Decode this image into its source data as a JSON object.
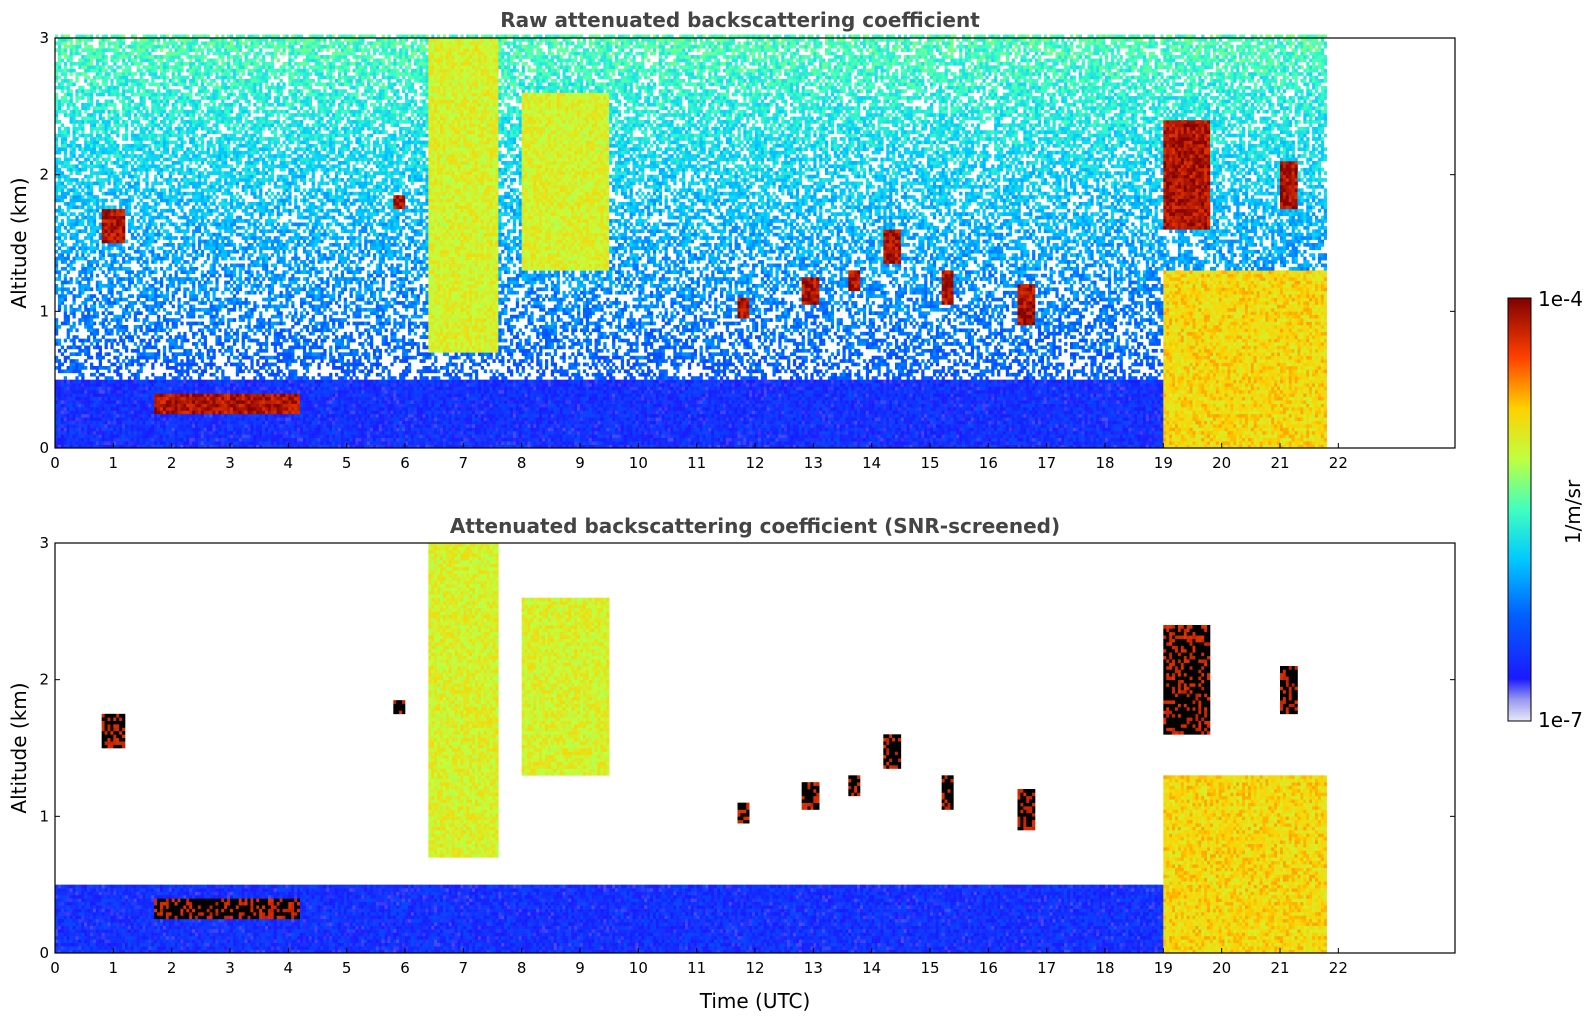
{
  "chart_data": [
    {
      "type": "heatmap",
      "title": "Raw attenuated backscattering coefficient",
      "xlabel": "",
      "ylabel": "Altitude (km)",
      "xlim": [
        0,
        24
      ],
      "ylim": [
        0,
        3
      ],
      "x_ticks": [
        "0",
        "1",
        "2",
        "3",
        "4",
        "5",
        "6",
        "7",
        "8",
        "9",
        "10",
        "11",
        "12",
        "13",
        "14",
        "15",
        "16",
        "17",
        "18",
        "19",
        "20",
        "21",
        "22"
      ],
      "y_ticks": [
        "0",
        "1",
        "2",
        "3"
      ],
      "data_extent_hours": [
        0,
        21.8
      ],
      "features": [
        {
          "kind": "boundary-layer",
          "x": [
            0,
            19
          ],
          "y": [
            0,
            0.5
          ],
          "level": "low"
        },
        {
          "kind": "aerosol-layer",
          "x": [
            1.7,
            4.2
          ],
          "y": [
            0.25,
            0.4
          ],
          "level": "max"
        },
        {
          "kind": "fall-streak",
          "x": [
            6.4,
            7.6
          ],
          "y": [
            0.7,
            3.0
          ],
          "level": "mid"
        },
        {
          "kind": "fall-streak",
          "x": [
            8.0,
            9.5
          ],
          "y": [
            1.3,
            2.6
          ],
          "level": "mid"
        },
        {
          "kind": "cloud",
          "x": [
            0.8,
            1.2
          ],
          "y": [
            1.5,
            1.75
          ],
          "level": "max"
        },
        {
          "kind": "cloud",
          "x": [
            5.8,
            6.0
          ],
          "y": [
            1.75,
            1.85
          ],
          "level": "max"
        },
        {
          "kind": "cloud",
          "x": [
            11.7,
            11.9
          ],
          "y": [
            0.95,
            1.1
          ],
          "level": "max"
        },
        {
          "kind": "cloud",
          "x": [
            12.8,
            13.1
          ],
          "y": [
            1.05,
            1.25
          ],
          "level": "max"
        },
        {
          "kind": "cloud",
          "x": [
            13.6,
            13.8
          ],
          "y": [
            1.15,
            1.3
          ],
          "level": "max"
        },
        {
          "kind": "cloud",
          "x": [
            14.2,
            14.5
          ],
          "y": [
            1.35,
            1.6
          ],
          "level": "max"
        },
        {
          "kind": "cloud",
          "x": [
            15.2,
            15.4
          ],
          "y": [
            1.05,
            1.3
          ],
          "level": "max"
        },
        {
          "kind": "cloud",
          "x": [
            16.5,
            16.8
          ],
          "y": [
            0.9,
            1.2
          ],
          "level": "max"
        },
        {
          "kind": "cloud",
          "x": [
            19.0,
            19.8
          ],
          "y": [
            1.6,
            2.4
          ],
          "level": "max"
        },
        {
          "kind": "cloud",
          "x": [
            21.0,
            21.3
          ],
          "y": [
            1.75,
            2.1
          ],
          "level": "max"
        },
        {
          "kind": "low-cloud-precip",
          "x": [
            19.0,
            21.8
          ],
          "y": [
            0,
            1.3
          ],
          "level": "high"
        }
      ]
    },
    {
      "type": "heatmap",
      "title": "Attenuated backscattering coefficient (SNR-screened)",
      "xlabel": "Time (UTC)",
      "ylabel": "Altitude (km)",
      "xlim": [
        0,
        24
      ],
      "ylim": [
        0,
        3
      ],
      "x_ticks": [
        "0",
        "1",
        "2",
        "3",
        "4",
        "5",
        "6",
        "7",
        "8",
        "9",
        "10",
        "11",
        "12",
        "13",
        "14",
        "15",
        "16",
        "17",
        "18",
        "19",
        "20",
        "21",
        "22"
      ],
      "y_ticks": [
        "0",
        "1",
        "2",
        "3"
      ],
      "data_extent_hours": [
        0,
        21.8
      ],
      "screened": true
    }
  ],
  "colorbar": {
    "label": "1/m/sr",
    "min_label": "1e-7",
    "max_label": "1e-4",
    "scale": "log"
  },
  "colors": {
    "background": "#ffffff",
    "title": "#444444"
  }
}
